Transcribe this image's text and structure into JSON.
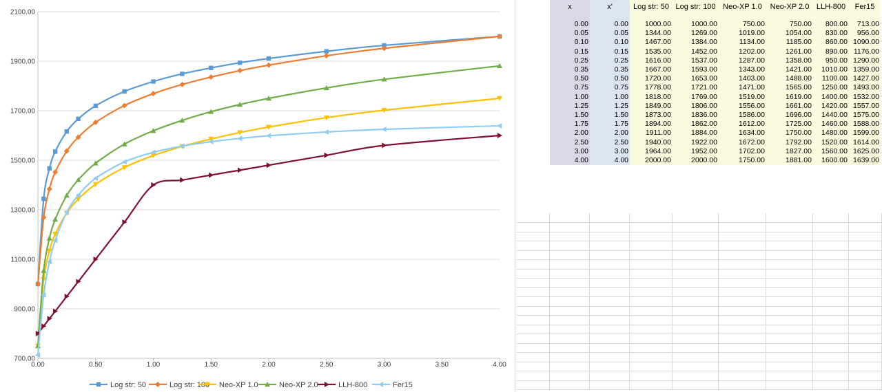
{
  "chart_data": {
    "type": "line",
    "title": "",
    "xlabel": "",
    "ylabel": "",
    "xlim": [
      0,
      4
    ],
    "ylim": [
      700,
      2100
    ],
    "xticks": [
      "0.00",
      "0.50",
      "1.00",
      "1.50",
      "2.00",
      "2.50",
      "3.00",
      "3.50",
      "4.00"
    ],
    "yticks": [
      "700.00",
      "900.00",
      "1100.00",
      "1300.00",
      "1500.00",
      "1700.00",
      "1900.00",
      "2100.00"
    ],
    "grid": "horizontal",
    "legend": "bottom",
    "x": [
      0,
      0.05,
      0.1,
      0.15,
      0.25,
      0.35,
      0.5,
      0.75,
      1,
      1.25,
      1.5,
      1.75,
      2,
      2.5,
      3,
      4
    ],
    "series": [
      {
        "name": "Log str: 50",
        "color": "#5b9bd5",
        "marker": "square",
        "values": [
          1000,
          1344,
          1467,
          1535,
          1616,
          1667,
          1720,
          1778,
          1818,
          1849,
          1873,
          1894,
          1911,
          1940,
          1964,
          2000
        ]
      },
      {
        "name": "Log str: 100",
        "color": "#ed7d31",
        "marker": "diamond",
        "values": [
          1000,
          1269,
          1384,
          1452,
          1537,
          1593,
          1653,
          1721,
          1769,
          1806,
          1836,
          1862,
          1884,
          1922,
          1952,
          2000
        ]
      },
      {
        "name": "Neo-XP 1.0",
        "color": "#ffc000",
        "marker": "triangle-down",
        "values": [
          750,
          1019,
          1134,
          1202,
          1287,
          1343,
          1403,
          1471,
          1519,
          1556,
          1586,
          1612,
          1634,
          1672,
          1702,
          1750
        ]
      },
      {
        "name": "Neo-XP 2.0",
        "color": "#70ad47",
        "marker": "triangle-up",
        "values": [
          750,
          1054,
          1185,
          1261,
          1358,
          1421,
          1488,
          1565,
          1619,
          1661,
          1696,
          1725,
          1750,
          1792,
          1827,
          1881
        ]
      },
      {
        "name": "LLH-800",
        "color": "#7f1030",
        "marker": "triangle-right",
        "values": [
          800,
          830,
          860,
          890,
          950,
          1010,
          1100,
          1250,
          1400,
          1420,
          1440,
          1460,
          1480,
          1520,
          1560,
          1600
        ]
      },
      {
        "name": "Fer15",
        "color": "#8fcdf4",
        "marker": "triangle-left",
        "values": [
          713,
          956,
          1090,
          1176,
          1290,
          1359,
          1427,
          1493,
          1532,
          1557,
          1575,
          1588,
          1599,
          1614,
          1625,
          1639
        ]
      }
    ]
  },
  "sheet": {
    "headers": [
      "x",
      "x'",
      "Log str: 50",
      "Log str: 100",
      "Neo-XP 1.0",
      "Neo-XP 2.0",
      "LLH-800",
      "Fer15"
    ],
    "rows": [
      [
        "0.00",
        "0.00",
        "1000.00",
        "1000.00",
        "750.00",
        "750.00",
        "800.00",
        "713.00"
      ],
      [
        "0.05",
        "0.05",
        "1344.00",
        "1269.00",
        "1019.00",
        "1054.00",
        "830.00",
        "956.00"
      ],
      [
        "0.10",
        "0.10",
        "1467.00",
        "1384.00",
        "1134.00",
        "1185.00",
        "860.00",
        "1090.00"
      ],
      [
        "0.15",
        "0.15",
        "1535.00",
        "1452.00",
        "1202.00",
        "1261.00",
        "890.00",
        "1176.00"
      ],
      [
        "0.25",
        "0.25",
        "1616.00",
        "1537.00",
        "1287.00",
        "1358.00",
        "950.00",
        "1290.00"
      ],
      [
        "0.35",
        "0.35",
        "1667.00",
        "1593.00",
        "1343.00",
        "1421.00",
        "1010.00",
        "1359.00"
      ],
      [
        "0.50",
        "0.50",
        "1720.00",
        "1653.00",
        "1403.00",
        "1488.00",
        "1100.00",
        "1427.00"
      ],
      [
        "0.75",
        "0.75",
        "1778.00",
        "1721.00",
        "1471.00",
        "1565.00",
        "1250.00",
        "1493.00"
      ],
      [
        "1.00",
        "1.00",
        "1818.00",
        "1769.00",
        "1519.00",
        "1619.00",
        "1400.00",
        "1532.00"
      ],
      [
        "1.25",
        "1.25",
        "1849.00",
        "1806.00",
        "1556.00",
        "1661.00",
        "1420.00",
        "1557.00"
      ],
      [
        "1.50",
        "1.50",
        "1873.00",
        "1836.00",
        "1586.00",
        "1696.00",
        "1440.00",
        "1575.00"
      ],
      [
        "1.75",
        "1.75",
        "1894.00",
        "1862.00",
        "1612.00",
        "1725.00",
        "1460.00",
        "1588.00"
      ],
      [
        "2.00",
        "2.00",
        "1911.00",
        "1884.00",
        "1634.00",
        "1750.00",
        "1480.00",
        "1599.00"
      ],
      [
        "2.50",
        "2.50",
        "1940.00",
        "1922.00",
        "1672.00",
        "1792.00",
        "1520.00",
        "1614.00"
      ],
      [
        "3.00",
        "3.00",
        "1964.00",
        "1952.00",
        "1702.00",
        "1827.00",
        "1560.00",
        "1625.00"
      ],
      [
        "4.00",
        "4.00",
        "2000.00",
        "2000.00",
        "1750.00",
        "1881.00",
        "1600.00",
        "1639.00"
      ]
    ]
  }
}
